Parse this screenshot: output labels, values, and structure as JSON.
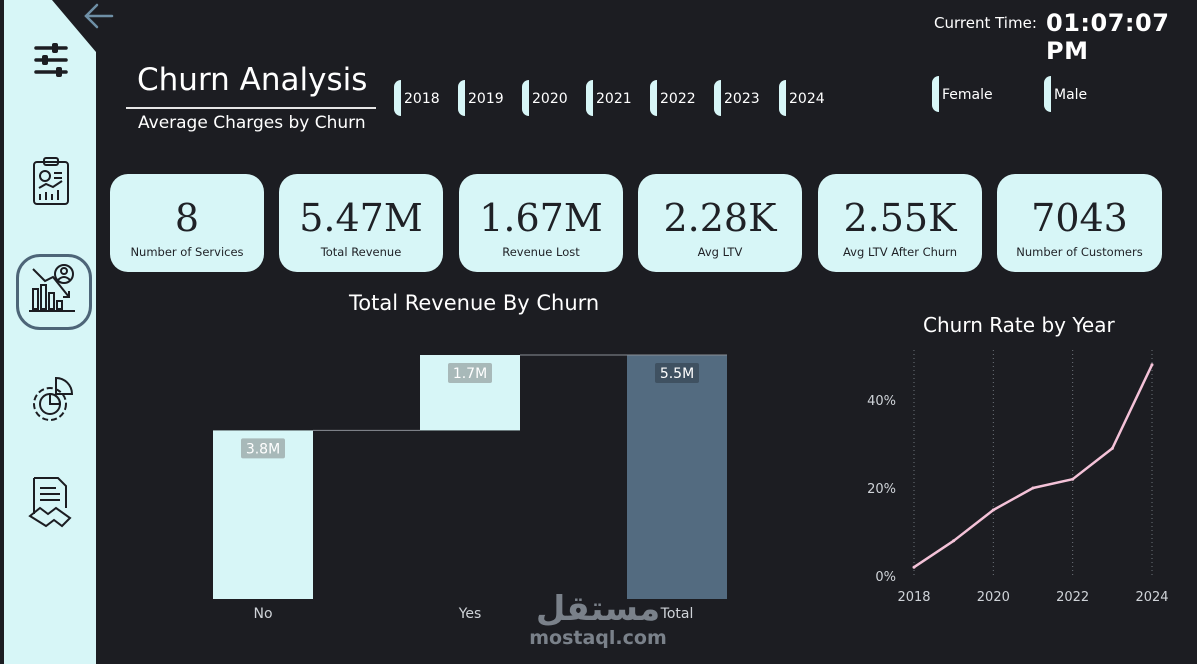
{
  "header": {
    "time_label": "Current Time:",
    "time_value": "01:07:07 PM",
    "title": "Churn Analysis",
    "subtitle": "Average Charges by Churn"
  },
  "sidebar": {
    "items": [
      {
        "name": "filters-icon"
      },
      {
        "name": "report-clipboard-icon"
      },
      {
        "name": "churn-analysis-icon",
        "active": true
      },
      {
        "name": "settings-pie-icon"
      },
      {
        "name": "contract-handshake-icon"
      }
    ]
  },
  "year_slicer": [
    "2018",
    "2019",
    "2020",
    "2021",
    "2022",
    "2023",
    "2024"
  ],
  "gender_slicer": [
    "Female",
    "Male"
  ],
  "kpis": [
    {
      "value": "8",
      "label": "Number of Services"
    },
    {
      "value": "5.47M",
      "label": "Total Revenue"
    },
    {
      "value": "1.67M",
      "label": "Revenue Lost"
    },
    {
      "value": "2.28K",
      "label": "Avg LTV"
    },
    {
      "value": "2.55K",
      "label": "Avg LTV After Churn"
    },
    {
      "value": "7043",
      "label": "Number of Customers"
    }
  ],
  "colors": {
    "background": "#1c1d22",
    "accent": "#d7f6f7",
    "total_bar": "#536b80",
    "line": "#f4c2d8"
  },
  "watermark": {
    "arabic": "مستقل",
    "latin": "mostaql.com"
  },
  "chart_data": [
    {
      "type": "bar",
      "subtype": "waterfall",
      "title": "Total Revenue By Churn",
      "categories": [
        "No",
        "Yes",
        "Total"
      ],
      "values": [
        3.8,
        1.7,
        5.5
      ],
      "data_labels": [
        "3.8M",
        "1.7M",
        "5.5M"
      ],
      "unit": "M",
      "ylim": [
        0,
        5.5
      ]
    },
    {
      "type": "line",
      "title": "Churn Rate by Year",
      "x": [
        "2018",
        "2019",
        "2020",
        "2021",
        "2022",
        "2023",
        "2024"
      ],
      "x_tick_labels": [
        "2018",
        "2020",
        "2022",
        "2024"
      ],
      "values": [
        2,
        8,
        15,
        20,
        22,
        29,
        48
      ],
      "y_tick_labels": [
        "0%",
        "20%",
        "40%"
      ],
      "ylim": [
        0,
        50
      ],
      "grid": "vertical dotted"
    }
  ]
}
